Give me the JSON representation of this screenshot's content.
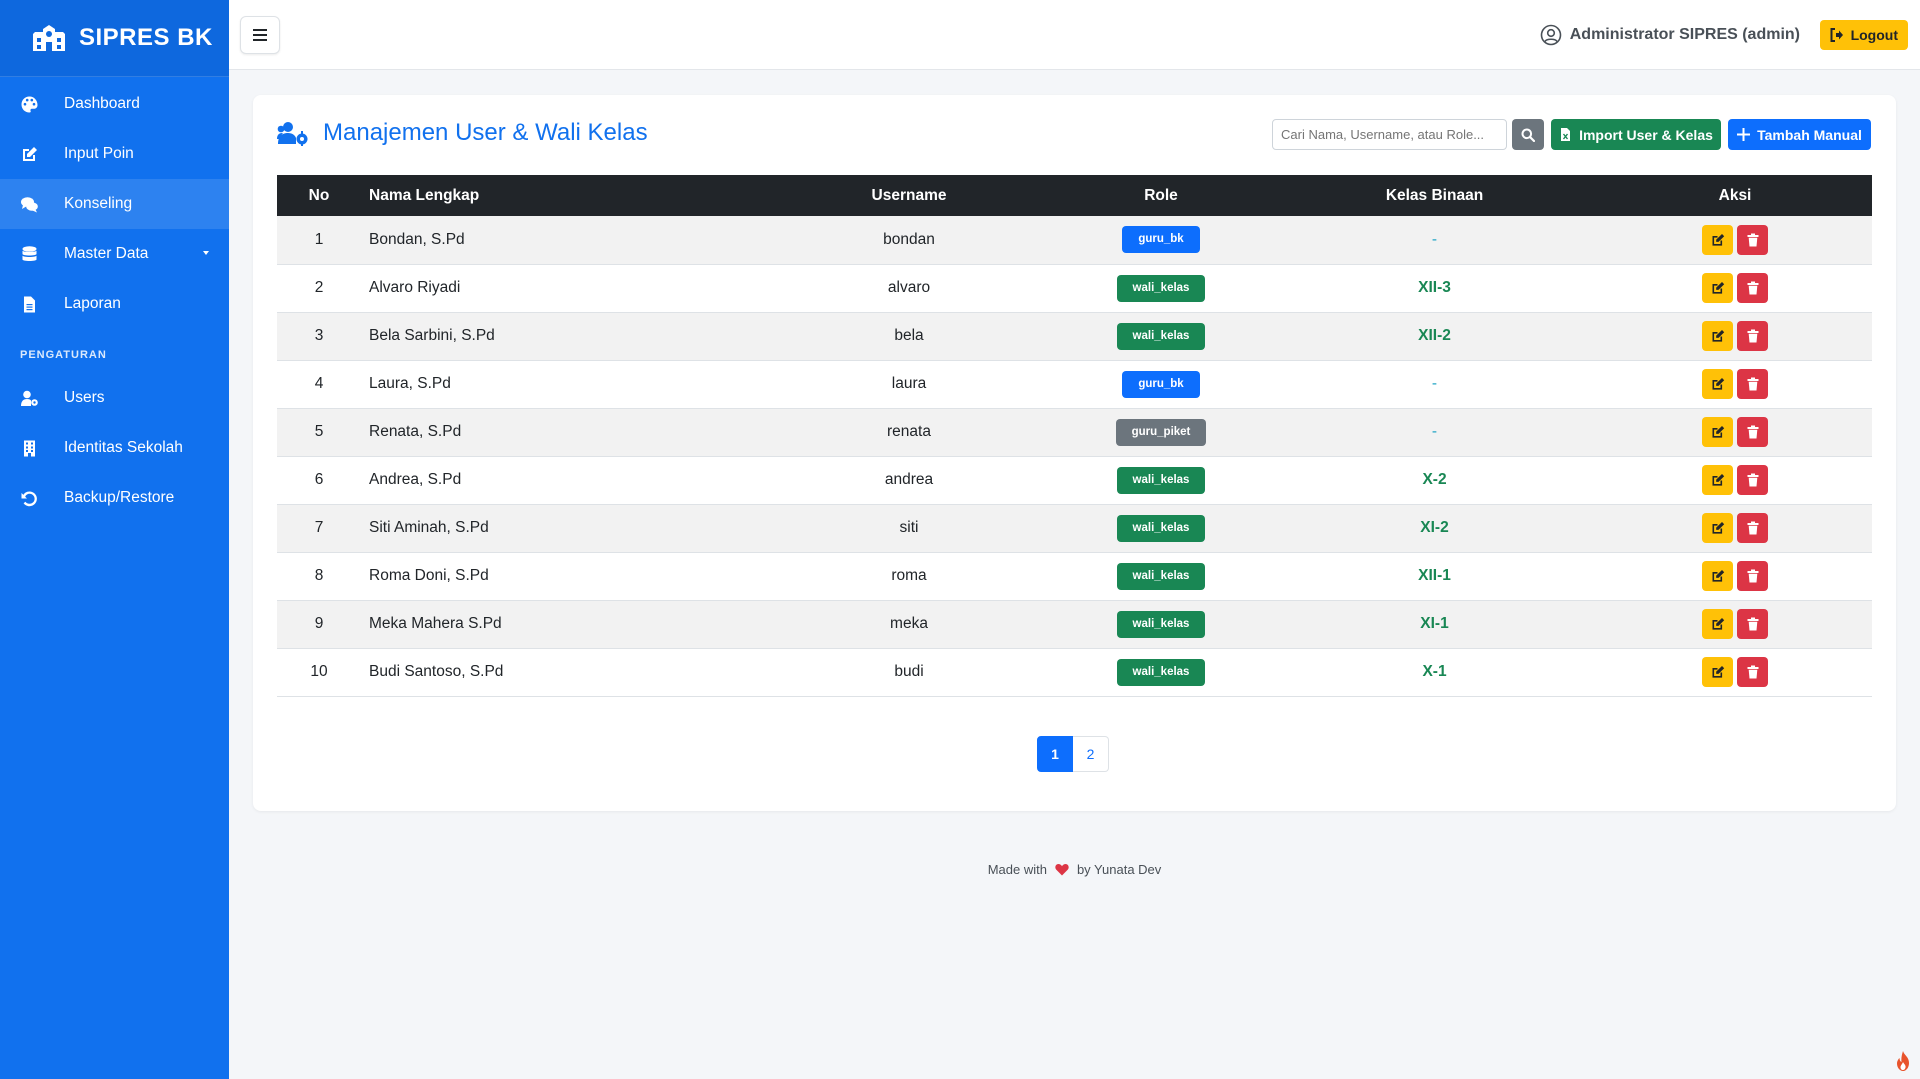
{
  "brand": {
    "name": "SIPRES BK",
    "icon": "school-icon"
  },
  "sidebar": {
    "items": [
      {
        "label": "Dashboard",
        "icon": "palette-icon"
      },
      {
        "label": "Input Poin",
        "icon": "edit-icon"
      },
      {
        "label": "Konseling",
        "icon": "comments-icon",
        "active": true
      },
      {
        "label": "Master Data",
        "icon": "database-icon",
        "dropdown": true
      },
      {
        "label": "Laporan",
        "icon": "file-icon"
      }
    ],
    "heading": "PENGATURAN",
    "settings": [
      {
        "label": "Users",
        "icon": "user-cog-icon"
      },
      {
        "label": "Identitas Sekolah",
        "icon": "building-icon"
      },
      {
        "label": "Backup/Restore",
        "icon": "undo-icon"
      }
    ]
  },
  "topbar": {
    "user": "Administrator SIPRES (admin)",
    "logout": "Logout"
  },
  "page": {
    "title": "Manajemen User & Wali Kelas",
    "search_placeholder": "Cari Nama, Username, atau Role...",
    "import_label": "Import User & Kelas",
    "add_label": "Tambah Manual"
  },
  "table": {
    "headers": [
      "No",
      "Nama Lengkap",
      "Username",
      "Role",
      "Kelas Binaan",
      "Aksi"
    ],
    "rows": [
      {
        "no": "1",
        "name": "Bondan, S.Pd",
        "username": "bondan",
        "role": "guru_bk",
        "kelas": "-"
      },
      {
        "no": "2",
        "name": "Alvaro Riyadi",
        "username": "alvaro",
        "role": "wali_kelas",
        "kelas": "XII-3"
      },
      {
        "no": "3",
        "name": "Bela Sarbini, S.Pd",
        "username": "bela",
        "role": "wali_kelas",
        "kelas": "XII-2"
      },
      {
        "no": "4",
        "name": "Laura, S.Pd",
        "username": "laura",
        "role": "guru_bk",
        "kelas": "-"
      },
      {
        "no": "5",
        "name": "Renata, S.Pd",
        "username": "renata",
        "role": "guru_piket",
        "kelas": "-"
      },
      {
        "no": "6",
        "name": "Andrea, S.Pd",
        "username": "andrea",
        "role": "wali_kelas",
        "kelas": "X-2"
      },
      {
        "no": "7",
        "name": "Siti Aminah, S.Pd",
        "username": "siti",
        "role": "wali_kelas",
        "kelas": "XI-2"
      },
      {
        "no": "8",
        "name": "Roma Doni, S.Pd",
        "username": "roma",
        "role": "wali_kelas",
        "kelas": "XII-1"
      },
      {
        "no": "9",
        "name": "Meka Mahera S.Pd",
        "username": "meka",
        "role": "wali_kelas",
        "kelas": "XI-1"
      },
      {
        "no": "10",
        "name": "Budi Santoso, S.Pd",
        "username": "budi",
        "role": "wali_kelas",
        "kelas": "X-1"
      }
    ]
  },
  "role_colors": {
    "guru_bk": "#0d6efd",
    "wali_kelas": "#198754",
    "guru_piket": "#6c757d"
  },
  "pagination": {
    "pages": [
      "1",
      "2"
    ],
    "current": "1"
  },
  "footer": {
    "before": "Made with",
    "after": "by Yunata Dev"
  }
}
